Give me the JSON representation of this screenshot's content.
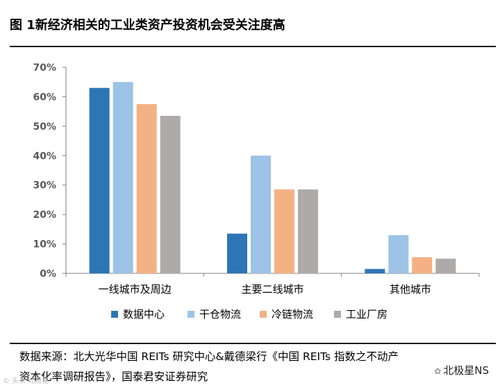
{
  "figure_title": "图 1新经济相关的工业类资产投资机会受关注度高",
  "source_lines": [
    "数据来源：北大光华中国 REITs 研究中心&戴德梁行《中国 REITs 指数之不动产",
    "资本化率调研报告》，国泰君安证券研究"
  ],
  "watermark_right": "北极星NS",
  "watermark_left": "© 头条 北极星",
  "colors": {
    "数据中心": "#2E75B6",
    "干仓物流": "#9DC3E6",
    "冷链物流": "#F4B183",
    "工业厂房": "#AEAAAA"
  },
  "chart_data": {
    "type": "bar",
    "title": "",
    "xlabel": "",
    "ylabel": "",
    "categories": [
      "一线城市及周边",
      "主要二线城市",
      "其他城市"
    ],
    "series": [
      {
        "name": "数据中心",
        "values": [
          63,
          13.5,
          1.5
        ]
      },
      {
        "name": "干仓物流",
        "values": [
          65,
          40,
          13
        ]
      },
      {
        "name": "冷链物流",
        "values": [
          57.5,
          28.5,
          5.5
        ]
      },
      {
        "name": "工业厂房",
        "values": [
          53.5,
          28.5,
          5
        ]
      }
    ],
    "ylim": [
      0,
      70
    ],
    "yticks": [
      0,
      10,
      20,
      30,
      40,
      50,
      60,
      70
    ],
    "ytick_labels": [
      "0%",
      "10%",
      "20%",
      "30%",
      "40%",
      "50%",
      "60%",
      "70%"
    ],
    "grid": false,
    "legend_position": "bottom"
  }
}
